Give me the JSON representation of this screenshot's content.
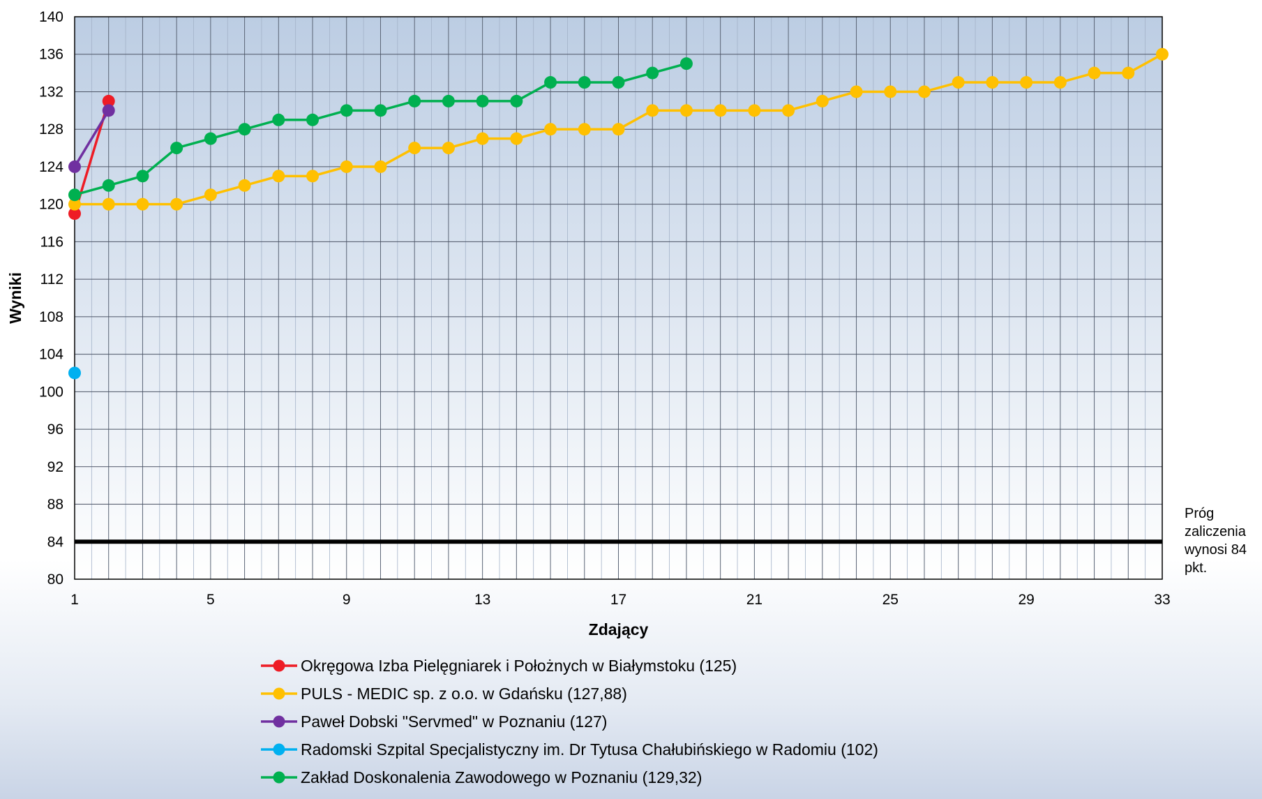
{
  "chart_data": {
    "type": "line",
    "title": "",
    "xlabel": "Zdający",
    "ylabel": "Wyniki",
    "xlim": [
      1,
      33
    ],
    "ylim": [
      80,
      140
    ],
    "x_ticks": [
      1,
      5,
      9,
      13,
      17,
      21,
      25,
      29,
      33
    ],
    "y_ticks": [
      80,
      84,
      88,
      92,
      96,
      100,
      104,
      108,
      112,
      116,
      120,
      124,
      128,
      132,
      136,
      140
    ],
    "grid": true,
    "legend_position": "bottom",
    "threshold": {
      "value": 84,
      "label_lines": [
        "Próg",
        "zaliczenia",
        "wynosi 84",
        "pkt."
      ]
    },
    "series": [
      {
        "name": "Okręgowa Izba Pielęgniarek i Położnych w Białymstoku (125)",
        "color": "#ee1c25",
        "x": [
          1,
          2
        ],
        "y": [
          119,
          131
        ]
      },
      {
        "name": "PULS - MEDIC sp. z o.o. w Gdańsku (127,88)",
        "color": "#ffc000",
        "x": [
          1,
          2,
          3,
          4,
          5,
          6,
          7,
          8,
          9,
          10,
          11,
          12,
          13,
          14,
          15,
          16,
          17,
          18,
          19,
          20,
          21,
          22,
          23,
          24,
          25,
          26,
          27,
          28,
          29,
          30,
          31,
          32,
          33
        ],
        "y": [
          120,
          120,
          120,
          120,
          121,
          122,
          123,
          123,
          124,
          124,
          126,
          126,
          127,
          127,
          128,
          128,
          128,
          130,
          130,
          130,
          130,
          130,
          131,
          132,
          132,
          132,
          133,
          133,
          133,
          133,
          134,
          134,
          136
        ]
      },
      {
        "name": "Paweł Dobski \"Servmed\" w Poznaniu (127)",
        "color": "#7030a0",
        "x": [
          1,
          2
        ],
        "y": [
          124,
          130
        ]
      },
      {
        "name": "Radomski Szpital Specjalistyczny im. Dr Tytusa Chałubińskiego w Radomiu (102)",
        "color": "#00b0f0",
        "x": [
          1
        ],
        "y": [
          102
        ]
      },
      {
        "name": "Zakład Doskonalenia Zawodowego w Poznaniu (129,32)",
        "color": "#00b050",
        "x": [
          1,
          2,
          3,
          4,
          5,
          6,
          7,
          8,
          9,
          10,
          11,
          12,
          13,
          14,
          15,
          16,
          17,
          18,
          19
        ],
        "y": [
          121,
          122,
          123,
          126,
          127,
          128,
          129,
          129,
          130,
          130,
          131,
          131,
          131,
          131,
          133,
          133,
          133,
          134,
          135
        ]
      }
    ]
  }
}
